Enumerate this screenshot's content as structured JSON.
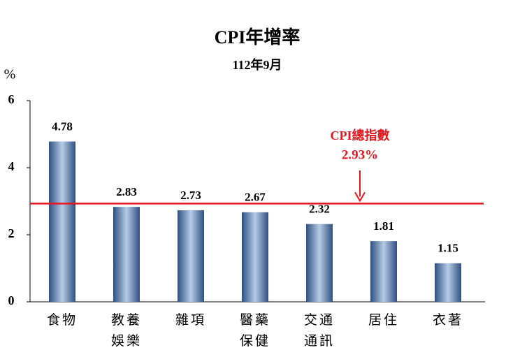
{
  "chart_data": {
    "type": "bar",
    "title": "CPI年增率",
    "subtitle": "112年9月",
    "y_label": "%",
    "categories": [
      "食物",
      "教養\n娛樂",
      "雜項",
      "醫藥\n保健",
      "交通\n通訊",
      "居住",
      "衣著"
    ],
    "values": [
      4.78,
      2.83,
      2.73,
      2.67,
      2.32,
      1.81,
      1.15
    ],
    "color": "#5b7fb0",
    "ylim": [
      0,
      6
    ],
    "yticks": [
      0,
      2,
      4,
      6
    ],
    "reference": {
      "value": 2.93,
      "label": "CPI總指數",
      "value_label": "2.93%",
      "color": "#e8141c"
    }
  }
}
